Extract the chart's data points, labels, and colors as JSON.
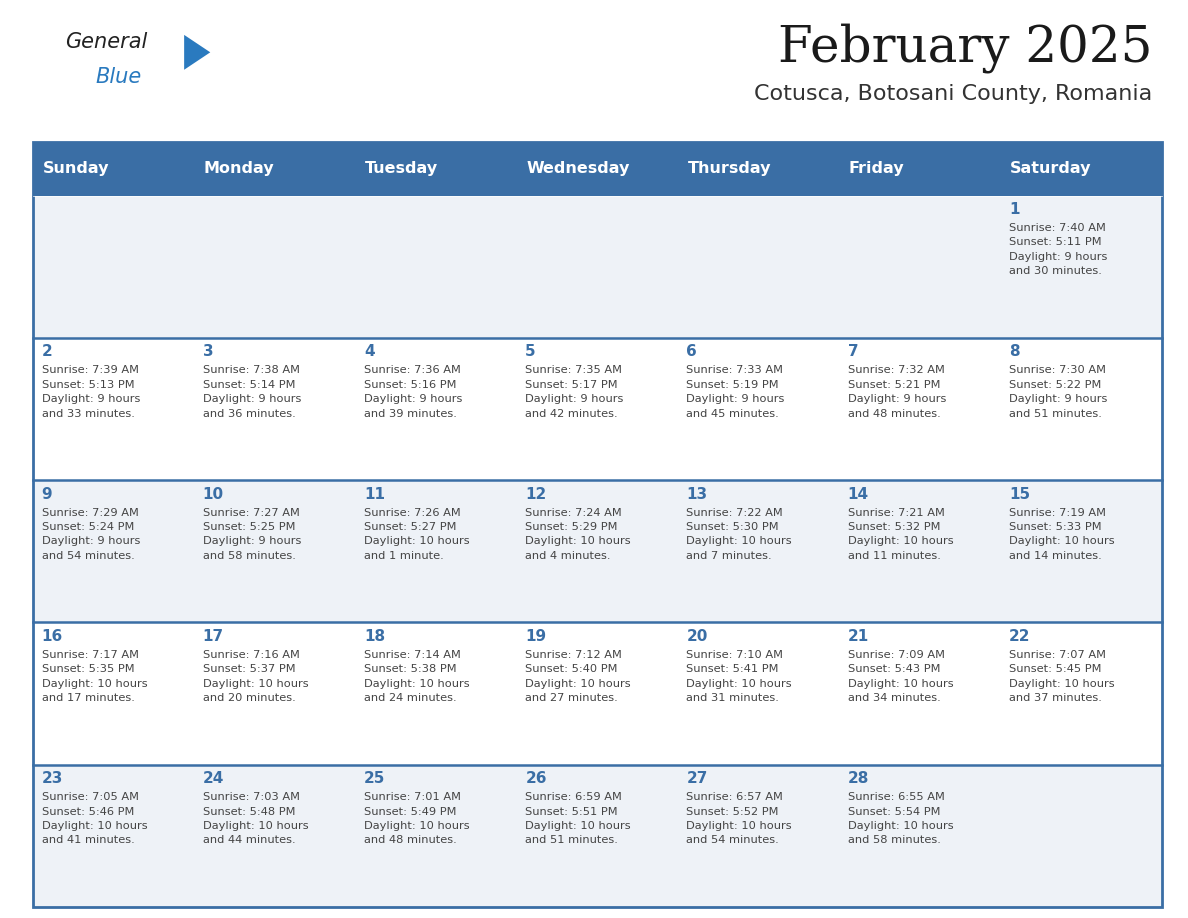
{
  "title": "February 2025",
  "subtitle": "Cotusca, Botosani County, Romania",
  "header_bg": "#3a6ea5",
  "header_text_color": "#ffffff",
  "cell_bg_light": "#eef2f7",
  "cell_bg_white": "#ffffff",
  "day_number_color": "#3a6ea5",
  "text_color": "#444444",
  "line_color": "#3a6ea5",
  "days_of_week": [
    "Sunday",
    "Monday",
    "Tuesday",
    "Wednesday",
    "Thursday",
    "Friday",
    "Saturday"
  ],
  "weeks": [
    [
      {
        "day": "",
        "info": ""
      },
      {
        "day": "",
        "info": ""
      },
      {
        "day": "",
        "info": ""
      },
      {
        "day": "",
        "info": ""
      },
      {
        "day": "",
        "info": ""
      },
      {
        "day": "",
        "info": ""
      },
      {
        "day": "1",
        "info": "Sunrise: 7:40 AM\nSunset: 5:11 PM\nDaylight: 9 hours\nand 30 minutes."
      }
    ],
    [
      {
        "day": "2",
        "info": "Sunrise: 7:39 AM\nSunset: 5:13 PM\nDaylight: 9 hours\nand 33 minutes."
      },
      {
        "day": "3",
        "info": "Sunrise: 7:38 AM\nSunset: 5:14 PM\nDaylight: 9 hours\nand 36 minutes."
      },
      {
        "day": "4",
        "info": "Sunrise: 7:36 AM\nSunset: 5:16 PM\nDaylight: 9 hours\nand 39 minutes."
      },
      {
        "day": "5",
        "info": "Sunrise: 7:35 AM\nSunset: 5:17 PM\nDaylight: 9 hours\nand 42 minutes."
      },
      {
        "day": "6",
        "info": "Sunrise: 7:33 AM\nSunset: 5:19 PM\nDaylight: 9 hours\nand 45 minutes."
      },
      {
        "day": "7",
        "info": "Sunrise: 7:32 AM\nSunset: 5:21 PM\nDaylight: 9 hours\nand 48 minutes."
      },
      {
        "day": "8",
        "info": "Sunrise: 7:30 AM\nSunset: 5:22 PM\nDaylight: 9 hours\nand 51 minutes."
      }
    ],
    [
      {
        "day": "9",
        "info": "Sunrise: 7:29 AM\nSunset: 5:24 PM\nDaylight: 9 hours\nand 54 minutes."
      },
      {
        "day": "10",
        "info": "Sunrise: 7:27 AM\nSunset: 5:25 PM\nDaylight: 9 hours\nand 58 minutes."
      },
      {
        "day": "11",
        "info": "Sunrise: 7:26 AM\nSunset: 5:27 PM\nDaylight: 10 hours\nand 1 minute."
      },
      {
        "day": "12",
        "info": "Sunrise: 7:24 AM\nSunset: 5:29 PM\nDaylight: 10 hours\nand 4 minutes."
      },
      {
        "day": "13",
        "info": "Sunrise: 7:22 AM\nSunset: 5:30 PM\nDaylight: 10 hours\nand 7 minutes."
      },
      {
        "day": "14",
        "info": "Sunrise: 7:21 AM\nSunset: 5:32 PM\nDaylight: 10 hours\nand 11 minutes."
      },
      {
        "day": "15",
        "info": "Sunrise: 7:19 AM\nSunset: 5:33 PM\nDaylight: 10 hours\nand 14 minutes."
      }
    ],
    [
      {
        "day": "16",
        "info": "Sunrise: 7:17 AM\nSunset: 5:35 PM\nDaylight: 10 hours\nand 17 minutes."
      },
      {
        "day": "17",
        "info": "Sunrise: 7:16 AM\nSunset: 5:37 PM\nDaylight: 10 hours\nand 20 minutes."
      },
      {
        "day": "18",
        "info": "Sunrise: 7:14 AM\nSunset: 5:38 PM\nDaylight: 10 hours\nand 24 minutes."
      },
      {
        "day": "19",
        "info": "Sunrise: 7:12 AM\nSunset: 5:40 PM\nDaylight: 10 hours\nand 27 minutes."
      },
      {
        "day": "20",
        "info": "Sunrise: 7:10 AM\nSunset: 5:41 PM\nDaylight: 10 hours\nand 31 minutes."
      },
      {
        "day": "21",
        "info": "Sunrise: 7:09 AM\nSunset: 5:43 PM\nDaylight: 10 hours\nand 34 minutes."
      },
      {
        "day": "22",
        "info": "Sunrise: 7:07 AM\nSunset: 5:45 PM\nDaylight: 10 hours\nand 37 minutes."
      }
    ],
    [
      {
        "day": "23",
        "info": "Sunrise: 7:05 AM\nSunset: 5:46 PM\nDaylight: 10 hours\nand 41 minutes."
      },
      {
        "day": "24",
        "info": "Sunrise: 7:03 AM\nSunset: 5:48 PM\nDaylight: 10 hours\nand 44 minutes."
      },
      {
        "day": "25",
        "info": "Sunrise: 7:01 AM\nSunset: 5:49 PM\nDaylight: 10 hours\nand 48 minutes."
      },
      {
        "day": "26",
        "info": "Sunrise: 6:59 AM\nSunset: 5:51 PM\nDaylight: 10 hours\nand 51 minutes."
      },
      {
        "day": "27",
        "info": "Sunrise: 6:57 AM\nSunset: 5:52 PM\nDaylight: 10 hours\nand 54 minutes."
      },
      {
        "day": "28",
        "info": "Sunrise: 6:55 AM\nSunset: 5:54 PM\nDaylight: 10 hours\nand 58 minutes."
      },
      {
        "day": "",
        "info": ""
      }
    ]
  ],
  "logo_general_color": "#222222",
  "logo_blue_color": "#2a7abf",
  "logo_triangle_color": "#2a7abf"
}
